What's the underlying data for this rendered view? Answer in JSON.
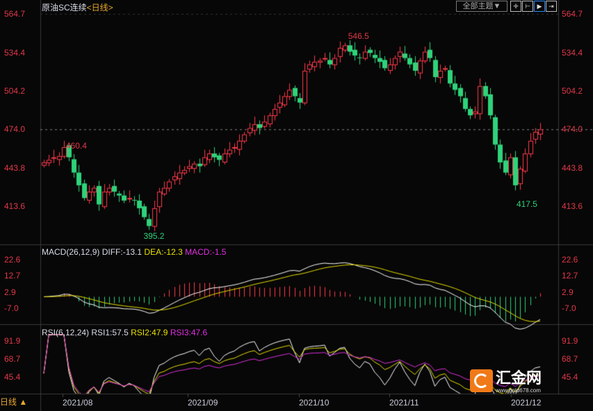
{
  "header": {
    "title": "原油SC连续",
    "period": "<日线>",
    "theme_button": "全部主题▼",
    "tool_icons": [
      "crosshair-icon",
      "fit-range-icon",
      "play-icon",
      "shift-right-icon"
    ]
  },
  "price_axis": {
    "labels": [
      "564.7",
      "534.4",
      "504.2",
      "474.0",
      "443.8",
      "413.6"
    ],
    "current": "474.0"
  },
  "annotations": {
    "high": "546.5",
    "low": "395.2",
    "local_high": "460.4",
    "recent_low": "417.5"
  },
  "macd": {
    "label": "MACD(26,12,9)",
    "diff": "DIFF:-13.1",
    "dea": "DEA:-12.3",
    "macd": "MACD:-1.5",
    "axis": [
      "22.6",
      "12.7",
      "2.9",
      "-7.0"
    ]
  },
  "rsi": {
    "label": "RSI(6,12,24)",
    "rsi1": "RSI1:57.5",
    "rsi2": "RSI2:47.9",
    "rsi3": "RSI3:47.6",
    "axis": [
      "91.9",
      "68.7",
      "45.4"
    ]
  },
  "xaxis": {
    "labels": [
      "2021/08",
      "2021/09",
      "2021/10",
      "2021/11",
      "2021/12"
    ]
  },
  "footer": {
    "period_button": "日线 ▲"
  },
  "watermark": {
    "brand": "汇金网",
    "url": "www.gold678.com"
  },
  "colors": {
    "up": "#ff3a4a",
    "down": "#2ed37a",
    "axis": "#e03848",
    "diff": "#ffffff",
    "dea": "#e8e000",
    "rsi3": "#e030e0"
  },
  "chart_data": {
    "type": "candlestick",
    "closes": [
      448,
      450,
      452,
      453,
      460,
      452,
      440,
      430,
      420,
      425,
      428,
      415,
      425,
      428,
      425,
      422,
      418,
      420,
      418,
      412,
      405,
      398,
      412,
      425,
      428,
      433,
      437,
      440,
      442,
      445,
      447,
      445,
      452,
      455,
      452,
      450,
      455,
      458,
      460,
      465,
      470,
      475,
      478,
      475,
      480,
      485,
      490,
      495,
      500,
      505,
      500,
      495,
      520,
      525,
      527,
      528,
      530,
      525,
      530,
      538,
      540,
      535,
      532,
      530,
      535,
      534,
      530,
      527,
      522,
      525,
      530,
      535,
      530,
      525,
      520,
      528,
      535,
      530,
      515,
      520,
      522,
      510,
      505,
      500,
      490,
      485,
      488,
      508,
      500,
      485,
      462,
      448,
      440,
      452,
      430,
      443,
      455,
      465,
      472,
      474
    ],
    "ylim": [
      413.6,
      564.7
    ]
  }
}
